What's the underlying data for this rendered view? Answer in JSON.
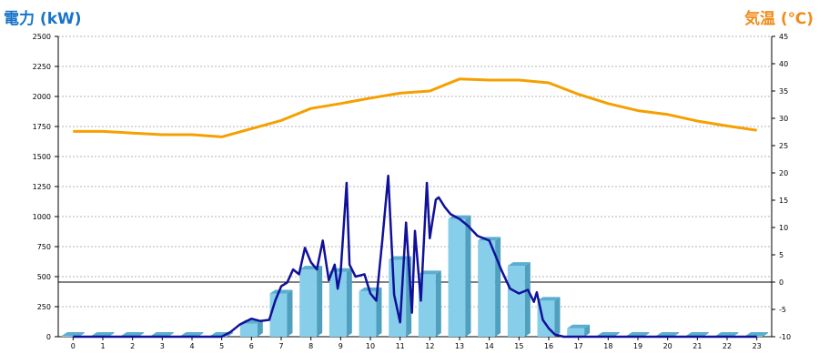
{
  "chart_data": {
    "type": "bar",
    "y_left_label": "電力 (kW)",
    "y_right_label": "気温 (℃)",
    "ylim_left": [
      0,
      2500
    ],
    "ylim_right": [
      -10,
      45
    ],
    "y_left_ticks": [
      0,
      250,
      500,
      750,
      1000,
      1250,
      1500,
      1750,
      2000,
      2250,
      2500
    ],
    "y_right_ticks": [
      -10,
      -5,
      0,
      5,
      10,
      15,
      20,
      25,
      30,
      35,
      40,
      45
    ],
    "categories": [
      "0",
      "1",
      "2",
      "3",
      "4",
      "5",
      "6",
      "7",
      "8",
      "9",
      "10",
      "11",
      "12",
      "13",
      "14",
      "15",
      "16",
      "17",
      "18",
      "19",
      "20",
      "21",
      "22",
      "23"
    ],
    "grid": true,
    "series": [
      {
        "kind": "bar",
        "axis": "left",
        "color": "#87ceeb",
        "values": [
          0,
          0,
          0,
          0,
          0,
          0,
          110,
          360,
          560,
          540,
          380,
          640,
          520,
          980,
          800,
          590,
          300,
          70,
          0,
          0,
          0,
          0,
          0,
          0
        ]
      },
      {
        "kind": "line",
        "axis": "right",
        "color": "#f5a000",
        "x": [
          0,
          1,
          2,
          3,
          4,
          5,
          6,
          7,
          8,
          9,
          10,
          11,
          12,
          13,
          14,
          15,
          16,
          17,
          18,
          19,
          20,
          21,
          22,
          23
        ],
        "values": [
          27.6,
          27.6,
          27.3,
          27.0,
          27.0,
          26.6,
          28.1,
          29.6,
          31.8,
          32.7,
          33.7,
          34.6,
          35.0,
          37.2,
          37.0,
          37.0,
          36.5,
          34.4,
          32.7,
          31.4,
          30.7,
          29.5,
          28.6,
          27.8
        ]
      },
      {
        "kind": "line",
        "axis": "left",
        "color": "#10109a",
        "x": [
          0,
          1,
          2,
          3,
          4,
          5,
          5.3,
          5.6,
          6,
          6.3,
          6.6,
          6.8,
          7,
          7.2,
          7.4,
          7.6,
          7.8,
          8,
          8.2,
          8.4,
          8.6,
          8.8,
          8.9,
          9,
          9.2,
          9.3,
          9.5,
          9.8,
          10,
          10.2,
          10.4,
          10.6,
          10.8,
          11,
          11.2,
          11.4,
          11.5,
          11.7,
          11.9,
          12,
          12.2,
          12.3,
          12.5,
          12.7,
          13,
          13.3,
          13.6,
          14,
          14.2,
          14.4,
          14.7,
          15,
          15.3,
          15.5,
          15.6,
          15.8,
          16,
          16.2,
          16.5,
          17,
          17.5,
          18,
          19,
          20,
          21,
          22,
          23
        ],
        "values": [
          0,
          0,
          0,
          0,
          0,
          0,
          40,
          100,
          150,
          130,
          140,
          300,
          420,
          450,
          560,
          520,
          740,
          620,
          560,
          800,
          470,
          600,
          400,
          530,
          1280,
          600,
          500,
          520,
          360,
          300,
          800,
          1340,
          350,
          120,
          950,
          200,
          880,
          300,
          1280,
          820,
          1140,
          1160,
          1080,
          1020,
          980,
          920,
          840,
          800,
          680,
          560,
          400,
          360,
          390,
          290,
          370,
          140,
          70,
          20,
          0,
          0,
          0,
          0,
          0,
          0,
          0,
          0,
          0
        ]
      }
    ]
  }
}
